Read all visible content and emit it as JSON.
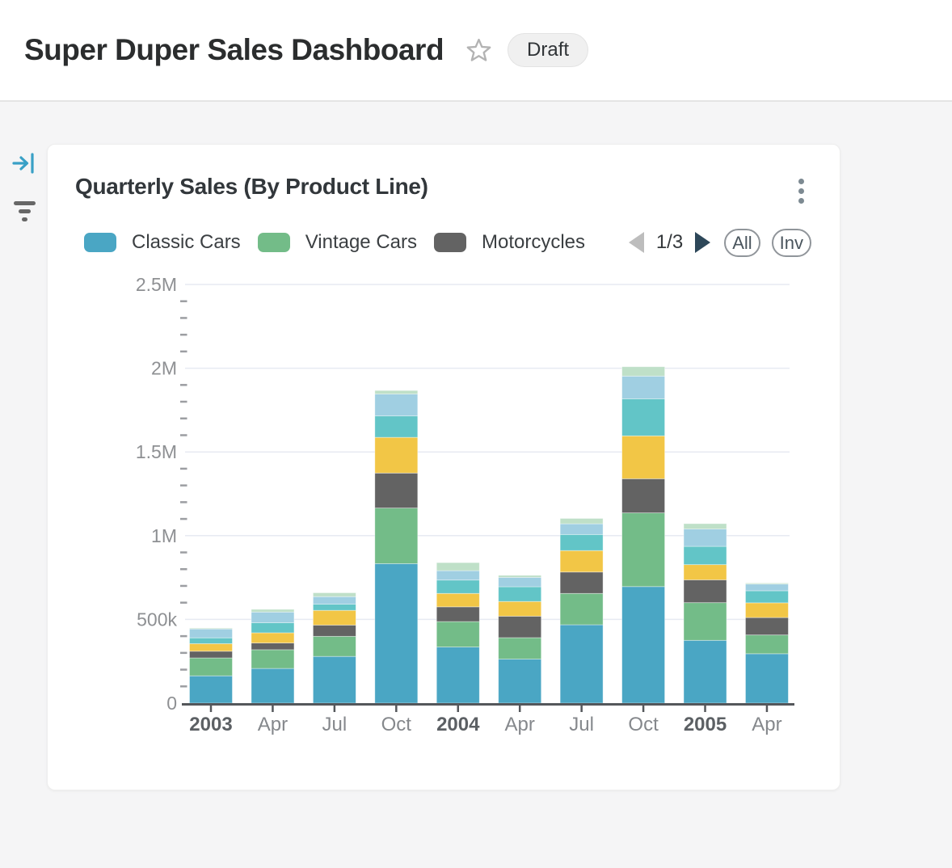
{
  "page": {
    "title": "Super Duper Sales Dashboard",
    "status_badge": "Draft"
  },
  "rail": {
    "icons": [
      "collapse-panel-icon",
      "filter-icon"
    ]
  },
  "card": {
    "title": "Quarterly Sales (By Product Line)",
    "menu_icon": "kebab-menu-icon",
    "legend_pager": {
      "label": "1/3"
    },
    "buttons": {
      "all": "All",
      "inv": "Inv"
    }
  },
  "colors": {
    "rail_icon_blue": "#39a0c6",
    "pager_next_arrow": "#2d4759",
    "pager_prev_arrow": "#bdbdbd",
    "gridline": "#e7eaf2",
    "axis": "#54575b",
    "page_background": "#f5f5f6"
  },
  "chart_data": {
    "type": "bar",
    "stacked": true,
    "title": "Quarterly Sales (By Product Line)",
    "xlabel": "",
    "ylabel": "",
    "ylim": [
      0,
      2500000
    ],
    "grid": true,
    "legend_position": "top",
    "legend_page": "1/3",
    "categories": [
      "2003",
      "Apr",
      "Jul",
      "Oct",
      "2004",
      "Apr",
      "Jul",
      "Oct",
      "2005",
      "Apr"
    ],
    "emphasized_indices": [
      0,
      4,
      8
    ],
    "yticks": [
      {
        "value": 0,
        "label": "0"
      },
      {
        "value": 500000,
        "label": "500k"
      },
      {
        "value": 1000000,
        "label": "1M"
      },
      {
        "value": 1500000,
        "label": "1.5M"
      },
      {
        "value": 2000000,
        "label": "2M"
      },
      {
        "value": 2500000,
        "label": "2.5M"
      }
    ],
    "minor_tick_step": 100000,
    "series": [
      {
        "name": "Classic Cars",
        "color": "#4AA6C4",
        "legend_visible": true,
        "values": [
          163000,
          207000,
          279000,
          833000,
          335000,
          263000,
          468000,
          696000,
          375000,
          295000
        ]
      },
      {
        "name": "Vintage Cars",
        "color": "#73BC88",
        "legend_visible": true,
        "values": [
          107000,
          112000,
          120000,
          332000,
          152000,
          128000,
          187000,
          440000,
          225000,
          112000
        ]
      },
      {
        "name": "Motorcycles",
        "color": "#636363",
        "legend_visible": true,
        "values": [
          40000,
          40000,
          67000,
          209000,
          88000,
          128000,
          128000,
          204000,
          136000,
          104000
        ]
      },
      {
        "name": "",
        "color": "#F2C646",
        "legend_visible": false,
        "values": [
          45000,
          61000,
          88000,
          213000,
          80000,
          88000,
          128000,
          256000,
          91000,
          88000
        ]
      },
      {
        "name": "",
        "color": "#62C5C7",
        "legend_visible": false,
        "values": [
          35000,
          60000,
          37000,
          128000,
          80000,
          88000,
          96000,
          221000,
          109000,
          72000
        ]
      },
      {
        "name": "",
        "color": "#A0CFE2",
        "legend_visible": false,
        "values": [
          53000,
          64000,
          45000,
          131000,
          56000,
          56000,
          64000,
          136000,
          104000,
          40000
        ]
      },
      {
        "name": "",
        "color": "#BFE0C8",
        "legend_visible": false,
        "values": [
          5000,
          16000,
          23000,
          21000,
          48000,
          12000,
          32000,
          56000,
          32000,
          6000
        ]
      }
    ]
  }
}
